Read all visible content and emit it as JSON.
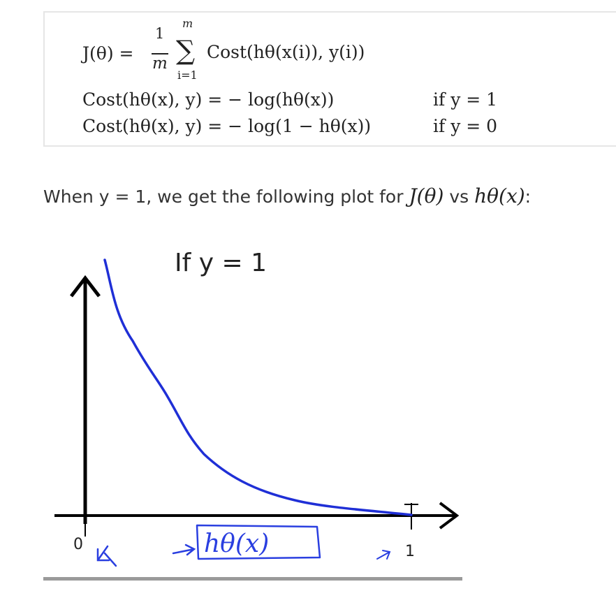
{
  "formula": {
    "cost_function_lhs": "J(θ) =",
    "frac_num": "1",
    "frac_den": "m",
    "sum_upper": "m",
    "sum_lower": "i=1",
    "sum_symbol": "∑",
    "sum_body": "Cost(hθ(x(i)), y(i))",
    "case1_expr": "Cost(hθ(x), y) = − log(hθ(x))",
    "case1_cond": "if y = 1",
    "case2_expr": "Cost(hθ(x), y) = − log(1 − hθ(x))",
    "case2_cond": "if y = 0"
  },
  "caption": {
    "prefix": "When y = 1, we get the following plot for",
    "math1": "J(θ)",
    "middle": "vs",
    "math2": "hθ(x)",
    "suffix": ":"
  },
  "plot": {
    "title": "If y = 1",
    "x_origin_label": "0",
    "x_end_label": "1",
    "x_axis_label": "hθ(x)",
    "colors": {
      "curve": "#1f2fd6",
      "axes": "#000000",
      "annotation": "#2a3fe0"
    }
  }
}
